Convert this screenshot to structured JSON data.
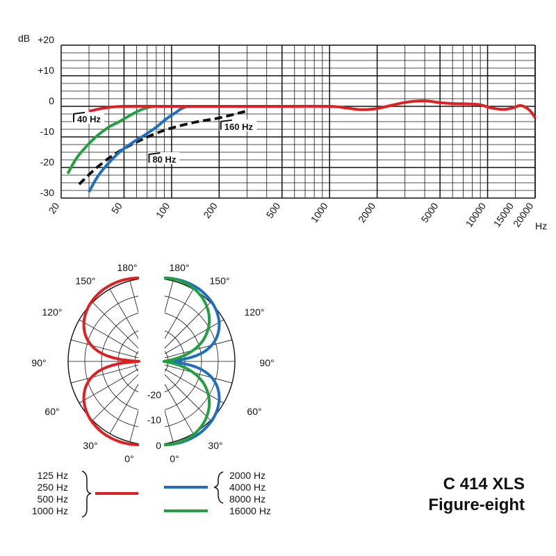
{
  "chart_data": [
    {
      "type": "line",
      "scale_x": "log",
      "x_range": [
        20,
        20000
      ],
      "y_range": [
        -30,
        20
      ],
      "y_unit": "dB",
      "x_unit": "Hz",
      "y_ticks": [
        "+20",
        "+10",
        "0",
        "-10",
        "-20",
        "-30"
      ],
      "y_tick_values": [
        20,
        10,
        0,
        -10,
        -20,
        -30
      ],
      "x_ticks": [
        "20",
        "50",
        "100",
        "200",
        "500",
        "1000",
        "2000",
        "5000",
        "10000",
        "15000",
        "20000"
      ],
      "x_tick_values": [
        20,
        50,
        100,
        200,
        500,
        1000,
        2000,
        5000,
        10000,
        15000,
        20000
      ],
      "grid": true,
      "series": [
        {
          "color": "#e02020",
          "style": "solid",
          "points": [
            [
              30,
              -1.6
            ],
            [
              38,
              -0.5
            ],
            [
              50,
              0
            ],
            [
              100,
              0
            ],
            [
              500,
              0
            ],
            [
              1000,
              0
            ],
            [
              1300,
              -0.6
            ],
            [
              1600,
              -1.1
            ],
            [
              2000,
              -0.7
            ],
            [
              2500,
              0.4
            ],
            [
              3100,
              1.4
            ],
            [
              4000,
              1.8
            ],
            [
              5000,
              1.2
            ],
            [
              6000,
              0.9
            ],
            [
              7500,
              0.8
            ],
            [
              9000,
              0.5
            ],
            [
              10500,
              -0.5
            ],
            [
              12500,
              -1.0
            ],
            [
              14500,
              -0.5
            ],
            [
              16000,
              0.3
            ],
            [
              17500,
              -0.4
            ],
            [
              19000,
              -2.0
            ],
            [
              20000,
              -3.8
            ]
          ]
        },
        {
          "color": "#22a040",
          "style": "solid",
          "points": [
            [
              22,
              -22
            ],
            [
              25,
              -17
            ],
            [
              29,
              -13
            ],
            [
              34,
              -9.5
            ],
            [
              40,
              -6.8
            ],
            [
              46,
              -5.2
            ],
            [
              52,
              -3.6
            ],
            [
              58,
              -2.2
            ],
            [
              65,
              -1
            ],
            [
              72,
              -0.3
            ],
            [
              78,
              0
            ]
          ]
        },
        {
          "color": "#1f6fc0",
          "style": "solid",
          "points": [
            [
              30,
              -28
            ],
            [
              34,
              -23
            ],
            [
              40,
              -18.5
            ],
            [
              48,
              -14.5
            ],
            [
              58,
              -11.5
            ],
            [
              68,
              -9.3
            ],
            [
              80,
              -6.8
            ],
            [
              92,
              -4.2
            ],
            [
              105,
              -2.2
            ],
            [
              115,
              -0.8
            ],
            [
              125,
              0
            ]
          ]
        },
        {
          "color": "#111111",
          "style": "dashed",
          "points": [
            [
              26,
              -25.5
            ],
            [
              32,
              -21
            ],
            [
              40,
              -17
            ],
            [
              50,
              -13.8
            ],
            [
              64,
              -11
            ],
            [
              80,
              -8.8
            ],
            [
              100,
              -7.1
            ],
            [
              140,
              -5.2
            ],
            [
              200,
              -3.8
            ],
            [
              300,
              -1.5
            ]
          ]
        }
      ],
      "flags": [
        {
          "label": "40 Hz",
          "x": 24,
          "y": -4.3
        },
        {
          "label": "80 Hz",
          "x": 72,
          "y": -17.5
        },
        {
          "label": "160 Hz",
          "x": 205,
          "y": -6.8
        }
      ]
    },
    {
      "type": "polar",
      "angle_labels_left": [
        "180°",
        "150°",
        "120°",
        "90°",
        "60°",
        "30°",
        "0°"
      ],
      "angle_labels_right": [
        "180°",
        "150°",
        "120°",
        "90°",
        "60°",
        "30°",
        "0°"
      ],
      "angle_label_values": [
        180,
        150,
        120,
        90,
        60,
        30,
        0
      ],
      "radial_labels": [
        "-20",
        "-10",
        "0"
      ],
      "radial_label_values": [
        -20,
        -10,
        0
      ],
      "r_range": [
        -25,
        0
      ],
      "rings": 5,
      "spoke_step_deg": 15,
      "series": [
        {
          "side": "left",
          "color": "#e02020",
          "pattern": "figure-eight",
          "min_db": -25
        },
        {
          "side": "right",
          "color": "#1f6fc0",
          "pattern": "figure-eight",
          "min_db": -25
        },
        {
          "side": "right",
          "color": "#22a040",
          "pattern": "figure-eight-narrow",
          "shrink": 0.72,
          "min_db": -25
        }
      ]
    }
  ],
  "legend": {
    "left_group": [
      "125 Hz",
      "250 Hz",
      "500 Hz",
      "1000 Hz"
    ],
    "left_color": "#e02020",
    "right_group_blue": [
      "2000 Hz",
      "4000 Hz",
      "8000 Hz"
    ],
    "blue_color": "#1f6fc0",
    "right_green": "16000 Hz",
    "green_color": "#22a040"
  },
  "model": {
    "name": "C 414 XLS",
    "pattern": "Figure-eight"
  }
}
